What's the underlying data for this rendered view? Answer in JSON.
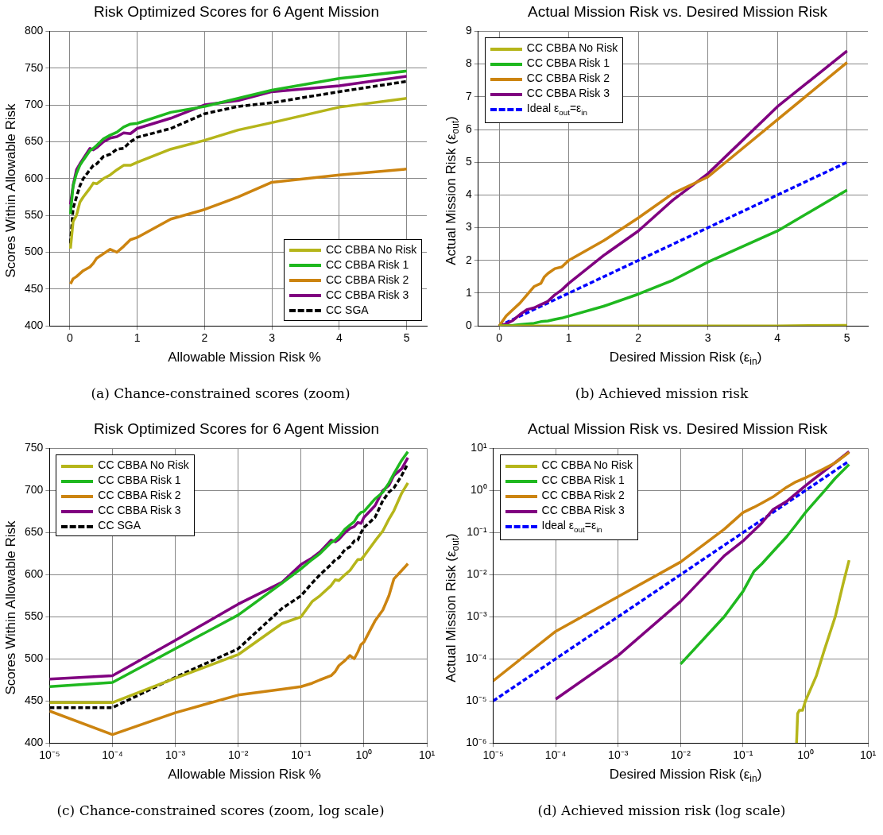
{
  "chart_data": [
    {
      "type": "line",
      "title": "Risk Optimized Scores for 6 Agent Mission",
      "xlabel": "Allowable Mission Risk %",
      "ylabel": "Scores Within Allowable Risk",
      "annotations": [
        "(a) Chance-constrained scores (zoom)"
      ],
      "x": [
        0.01,
        0.05,
        0.1,
        0.15,
        0.2,
        0.3,
        0.35,
        0.4,
        0.5,
        0.6,
        0.7,
        0.8,
        0.9,
        1,
        1.5,
        2,
        2.5,
        3,
        4,
        5
      ],
      "series": [
        {
          "name": "CC CBBA No Risk",
          "color": "#b5b51a",
          "values": [
            505,
            542,
            550,
            568,
            575,
            587,
            594,
            593,
            600,
            605,
            612,
            618,
            618,
            622,
            640,
            652,
            666,
            676,
            697,
            709
          ]
        },
        {
          "name": "CC CBBA Risk 1",
          "color": "#1fb81f",
          "values": [
            552,
            590,
            607,
            618,
            625,
            638,
            641,
            645,
            654,
            659,
            663,
            670,
            674,
            675,
            690,
            698,
            709,
            720,
            736,
            746
          ]
        },
        {
          "name": "CC CBBA Risk 2",
          "color": "#cc8410",
          "values": [
            457,
            464,
            467,
            471,
            475,
            480,
            485,
            492,
            498,
            504,
            500,
            508,
            517,
            520,
            545,
            558,
            575,
            595,
            605,
            613
          ]
        },
        {
          "name": "CC CBBA Risk 3",
          "color": "#800080",
          "values": [
            565,
            591,
            612,
            620,
            627,
            641,
            639,
            642,
            650,
            655,
            657,
            662,
            661,
            668,
            682,
            700,
            706,
            718,
            726,
            739
          ]
        },
        {
          "name": "CC SGA",
          "color": "#000000",
          "line_style": "dashed",
          "values": [
            512,
            560,
            575,
            590,
            600,
            612,
            618,
            620,
            630,
            633,
            640,
            641,
            650,
            656,
            668,
            688,
            698,
            703,
            718,
            732
          ]
        }
      ],
      "xlim": [
        -0.3,
        5.3
      ],
      "ylim": [
        400,
        800
      ],
      "xticks": [
        0,
        1,
        2,
        3,
        4,
        5
      ],
      "yticks": [
        400,
        450,
        500,
        550,
        600,
        650,
        700,
        750,
        800
      ],
      "grid": true,
      "legend": "bottom right"
    },
    {
      "type": "line",
      "title": "Actual Mission Risk vs. Desired Mission Risk",
      "xlabel": "Desired Mission Risk (ε$_{in}$)",
      "ylabel": "Actual Mission Risk (ε$_{out}$)",
      "annotations": [
        "(b) Achieved mission risk"
      ],
      "series": [
        {
          "name": "CC CBBA No Risk",
          "color": "#b5b51a",
          "x": [
            0,
            4,
            5
          ],
          "values": [
            0,
            0,
            0.02
          ]
        },
        {
          "name": "CC CBBA Risk 1",
          "color": "#1fb81f",
          "x": [
            0,
            0.2,
            0.3,
            0.4,
            0.5,
            0.6,
            0.7,
            0.8,
            0.9,
            1,
            1.5,
            2,
            2.5,
            3,
            4,
            5
          ],
          "values": [
            0,
            0.02,
            0.04,
            0.06,
            0.08,
            0.13,
            0.15,
            0.2,
            0.24,
            0.3,
            0.6,
            0.97,
            1.4,
            1.95,
            2.9,
            4.15
          ]
        },
        {
          "name": "CC CBBA Risk 2",
          "color": "#cc8410",
          "x": [
            0,
            0.1,
            0.2,
            0.3,
            0.4,
            0.5,
            0.6,
            0.65,
            0.7,
            0.8,
            0.9,
            1,
            1.5,
            2,
            2.5,
            3,
            4,
            5
          ],
          "values": [
            0,
            0.3,
            0.5,
            0.7,
            0.95,
            1.2,
            1.3,
            1.5,
            1.6,
            1.75,
            1.8,
            2,
            2.6,
            3.3,
            4.05,
            4.55,
            6.3,
            8.05
          ]
        },
        {
          "name": "CC CBBA Risk 3",
          "color": "#800080",
          "x": [
            0,
            0.1,
            0.2,
            0.3,
            0.4,
            0.5,
            0.6,
            0.7,
            0.8,
            0.9,
            1,
            1.5,
            2,
            2.5,
            3,
            4,
            5
          ],
          "values": [
            0,
            0.06,
            0.17,
            0.35,
            0.5,
            0.55,
            0.65,
            0.75,
            0.95,
            1.1,
            1.3,
            2.15,
            2.9,
            3.85,
            4.65,
            6.7,
            8.4
          ]
        },
        {
          "name": "Ideal ε$_{out}$=ε$_{in}$",
          "color": "#0000ff",
          "line_style": "dashed",
          "x": [
            0,
            5
          ],
          "values": [
            0,
            5
          ]
        }
      ],
      "xlim": [
        -0.3,
        5.3
      ],
      "ylim": [
        0,
        9
      ],
      "xticks": [
        0,
        1,
        2,
        3,
        4,
        5
      ],
      "yticks": [
        0,
        1,
        2,
        3,
        4,
        5,
        6,
        7,
        8,
        9
      ],
      "grid": true,
      "legend": "top left"
    },
    {
      "type": "line",
      "title": "Risk Optimized Scores for 6 Agent Mission",
      "xlabel": "Allowable Mission Risk %",
      "ylabel": "Scores Within Allowable Risk",
      "annotations": [
        "(c) Chance-constrained scores (zoom, log scale)"
      ],
      "x": [
        1e-05,
        0.0001,
        0.001,
        0.01,
        0.05,
        0.1,
        0.15,
        0.2,
        0.3,
        0.35,
        0.4,
        0.5,
        0.6,
        0.7,
        0.8,
        0.9,
        1,
        1.5,
        2,
        2.5,
        3,
        4,
        5
      ],
      "series": [
        {
          "name": "CC CBBA No Risk",
          "color": "#b5b51a",
          "values": [
            448,
            448,
            477,
            505,
            542,
            550,
            568,
            575,
            587,
            594,
            593,
            600,
            605,
            612,
            618,
            618,
            622,
            640,
            652,
            666,
            676,
            697,
            709
          ]
        },
        {
          "name": "CC CBBA Risk 1",
          "color": "#1fb81f",
          "values": [
            467,
            472,
            512,
            552,
            590,
            607,
            618,
            625,
            638,
            641,
            645,
            654,
            659,
            663,
            670,
            674,
            675,
            690,
            698,
            709,
            720,
            736,
            746
          ]
        },
        {
          "name": "CC CBBA Risk 2",
          "color": "#cc8410",
          "values": [
            438,
            410,
            436,
            457,
            464,
            467,
            471,
            475,
            480,
            485,
            492,
            498,
            504,
            500,
            508,
            517,
            520,
            545,
            558,
            575,
            595,
            605,
            613
          ]
        },
        {
          "name": "CC CBBA Risk 3",
          "color": "#800080",
          "values": [
            476,
            480,
            522,
            565,
            591,
            612,
            620,
            627,
            641,
            639,
            642,
            650,
            655,
            657,
            662,
            661,
            668,
            682,
            700,
            706,
            718,
            726,
            739
          ]
        },
        {
          "name": "CC SGA",
          "color": "#000000",
          "line_style": "dashed",
          "values": [
            442,
            442,
            478,
            512,
            560,
            575,
            590,
            600,
            612,
            618,
            620,
            630,
            633,
            640,
            641,
            650,
            656,
            668,
            688,
            698,
            703,
            718,
            732
          ]
        }
      ],
      "log": "x",
      "xlim": [
        1e-05,
        10
      ],
      "ylim": [
        400,
        750
      ],
      "xticks": [
        {
          "value": 1e-05,
          "label": "10⁻⁵"
        },
        {
          "value": 0.0001,
          "label": "10⁻⁴"
        },
        {
          "value": 0.001,
          "label": "10⁻³"
        },
        {
          "value": 0.01,
          "label": "10⁻²"
        },
        {
          "value": 0.1,
          "label": "10⁻¹"
        },
        {
          "value": 1,
          "label": "10⁰"
        },
        {
          "value": 10,
          "label": "10¹"
        }
      ],
      "yticks": [
        400,
        450,
        500,
        550,
        600,
        650,
        700,
        750
      ],
      "grid": true,
      "legend": "top left"
    },
    {
      "type": "line",
      "title": "Actual Mission Risk vs. Desired Mission Risk",
      "xlabel": "Desired Mission Risk (ε$_{in}$)",
      "ylabel": "Actual Mission Risk (ε$_{out}$)",
      "annotations": [
        "(d) Achieved mission risk (log scale)"
      ],
      "series": [
        {
          "name": "CC CBBA No Risk",
          "color": "#b5b51a",
          "x": [
            0.72,
            0.75,
            0.8,
            0.9,
            1,
            1.5,
            2,
            3,
            4,
            5
          ],
          "values": [
            1e-06,
            5e-06,
            6e-06,
            6e-06,
            1e-05,
            4e-05,
            0.00016,
            0.001,
            0.006,
            0.022
          ]
        },
        {
          "name": "CC CBBA Risk 1",
          "color": "#1fb81f",
          "x": [
            0.01,
            0.05,
            0.1,
            0.15,
            0.2,
            0.3,
            0.5,
            0.7,
            1,
            2,
            3,
            5
          ],
          "values": [
            7.5e-05,
            0.001,
            0.004,
            0.012,
            0.018,
            0.035,
            0.08,
            0.15,
            0.3,
            0.97,
            1.95,
            4.15
          ]
        },
        {
          "name": "CC CBBA Risk 2",
          "color": "#cc8410",
          "x": [
            1e-05,
            0.0001,
            0.001,
            0.01,
            0.05,
            0.1,
            0.15,
            0.2,
            0.3,
            0.5,
            0.7,
            1,
            2,
            3,
            5
          ],
          "values": [
            3e-05,
            0.00045,
            0.003,
            0.02,
            0.12,
            0.3,
            0.4,
            0.5,
            0.7,
            1.2,
            1.6,
            2,
            3.3,
            4.55,
            8.05
          ]
        },
        {
          "name": "CC CBBA Risk 3",
          "color": "#800080",
          "x": [
            0.0001,
            0.001,
            0.01,
            0.05,
            0.1,
            0.2,
            0.3,
            0.5,
            1,
            2,
            3,
            5
          ],
          "values": [
            1.1e-05,
            0.00012,
            0.0023,
            0.028,
            0.063,
            0.17,
            0.35,
            0.55,
            1.3,
            2.9,
            4.65,
            8.4
          ]
        },
        {
          "name": "Ideal ε$_{out}$=ε$_{in}$",
          "color": "#0000ff",
          "line_style": "dashed",
          "x": [
            1e-05,
            5
          ],
          "values": [
            1e-05,
            5
          ]
        }
      ],
      "log": "xy",
      "xlim": [
        1e-05,
        10
      ],
      "ylim": [
        1e-06,
        10
      ],
      "xticks": [
        {
          "value": 1e-05,
          "label": "10⁻⁵"
        },
        {
          "value": 0.0001,
          "label": "10⁻⁴"
        },
        {
          "value": 0.001,
          "label": "10⁻³"
        },
        {
          "value": 0.01,
          "label": "10⁻²"
        },
        {
          "value": 0.1,
          "label": "10⁻¹"
        },
        {
          "value": 1,
          "label": "10⁰"
        },
        {
          "value": 10,
          "label": "10¹"
        }
      ],
      "yticks": [
        {
          "value": 1e-06,
          "label": "10⁻⁶"
        },
        {
          "value": 1e-05,
          "label": "10⁻⁵"
        },
        {
          "value": 0.0001,
          "label": "10⁻⁴"
        },
        {
          "value": 0.001,
          "label": "10⁻³"
        },
        {
          "value": 0.01,
          "label": "10⁻²"
        },
        {
          "value": 0.1,
          "label": "10⁻¹"
        },
        {
          "value": 1,
          "label": "10⁰"
        },
        {
          "value": 10,
          "label": "10¹"
        }
      ],
      "grid": true,
      "legend": "top left"
    }
  ]
}
